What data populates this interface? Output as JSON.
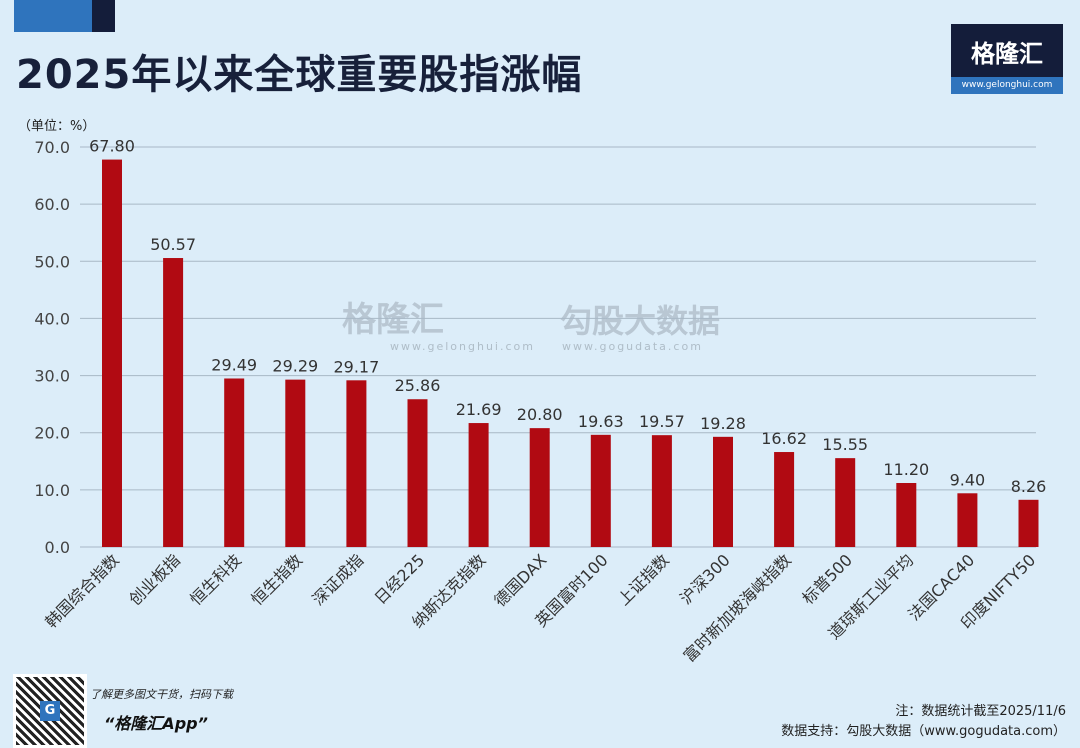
{
  "header": {
    "title": "2025年以来全球重要股指涨幅"
  },
  "logo": {
    "brand": "格隆汇",
    "url": "www.gelonghui.com"
  },
  "watermark": {
    "brand1": "格隆汇",
    "url1": "www.gelonghui.com",
    "brand2": "勾股大数据",
    "url2": "www.gogudata.com"
  },
  "footer": {
    "promo_line": "了解更多图文干货，扫码下载",
    "promo_app": "“格隆汇App”",
    "note": "注：数据统计截至2025/11/6",
    "source": "数据支持：勾股大数据（www.gogudata.com）"
  },
  "colors": {
    "bar": "#b10a12",
    "title": "#17203a",
    "background": "#dcedf9",
    "accent_blue": "#2f74bd",
    "navy": "#141d3a"
  },
  "chart_data": {
    "type": "bar",
    "title": "2025年以来全球重要股指涨幅",
    "unit_label": "（单位：%）",
    "categories": [
      "韩国综合指数",
      "创业板指",
      "恒生科技",
      "恒生指数",
      "深证成指",
      "日经225",
      "纳斯达克指数",
      "德国DAX",
      "英国富时100",
      "上证指数",
      "沪深300",
      "富时新加坡海峡指数",
      "标普500",
      "道琼斯工业平均",
      "法国CAC40",
      "印度NIFTY50"
    ],
    "values": [
      67.8,
      50.57,
      29.49,
      29.29,
      29.17,
      25.86,
      21.69,
      20.8,
      19.63,
      19.57,
      19.28,
      16.62,
      15.55,
      11.2,
      9.4,
      8.26
    ],
    "data_labels": [
      "67.80",
      "50.57",
      "29.49",
      "29.29",
      "29.17",
      "25.86",
      "21.69",
      "20.80",
      "19.63",
      "19.57",
      "19.28",
      "16.62",
      "15.55",
      "11.20",
      "9.40",
      "8.26"
    ],
    "yticks": [
      "0.0",
      "10.0",
      "20.0",
      "30.0",
      "40.0",
      "50.0",
      "60.0",
      "70.0"
    ],
    "ylim": [
      0,
      70
    ],
    "grid": true,
    "legend": "none"
  }
}
